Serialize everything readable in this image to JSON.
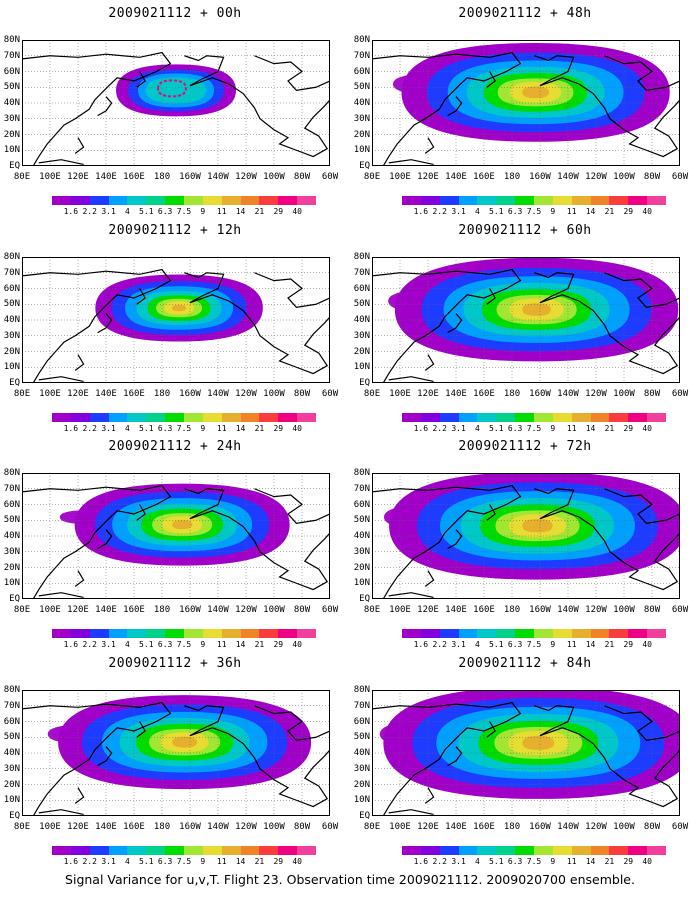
{
  "panels": [
    {
      "title": "2009021112 + 00h",
      "spread": 0.0
    },
    {
      "title": "2009021112 + 12h",
      "spread": 0.25
    },
    {
      "title": "2009021112 + 24h",
      "spread": 0.5
    },
    {
      "title": "2009021112 + 36h",
      "spread": 0.7
    },
    {
      "title": "2009021112 + 48h",
      "spread": 0.78
    },
    {
      "title": "2009021112 + 60h",
      "spread": 0.86
    },
    {
      "title": "2009021112 + 72h",
      "spread": 0.93
    },
    {
      "title": "2009021112 + 84h",
      "spread": 1.0
    }
  ],
  "lat_labels": [
    "80N",
    "70N",
    "60N",
    "50N",
    "40N",
    "30N",
    "20N",
    "10N",
    "EQ"
  ],
  "lon_labels": [
    "80E",
    "100E",
    "120E",
    "140E",
    "160E",
    "180",
    "160W",
    "140W",
    "120W",
    "100W",
    "80W",
    "60W"
  ],
  "colorbar": {
    "levels": [
      "1.6",
      "2.2",
      "3.1",
      "4",
      "5.1",
      "6.3",
      "7.5",
      "9",
      "11",
      "14",
      "21",
      "29",
      "40"
    ],
    "colors": [
      "#a000c8",
      "#8200dc",
      "#1e3cff",
      "#00a0ff",
      "#00c8c8",
      "#00d28c",
      "#00dc00",
      "#a0e632",
      "#e6dc32",
      "#e6af2d",
      "#f08228",
      "#fa3c3c",
      "#f00082",
      "#f0409c"
    ]
  },
  "footer": "Signal Variance for u,v,T. Flight 23. Observation time 2009021112. 2009020700 ensemble."
}
